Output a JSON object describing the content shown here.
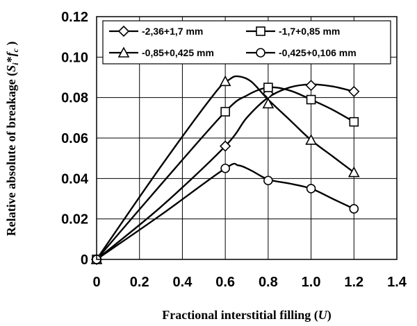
{
  "chart_data": {
    "type": "line",
    "title": "",
    "xlabel": "Fractional interstitial filling (U)",
    "xlabel_main": "Fractional interstitial filling (",
    "xlabel_var": "U",
    "xlabel_close": ")",
    "ylabel": "Relative absolute of breakage (Si*fc )",
    "ylabel_main": "Relative absolute of breakage (",
    "ylabel_s": "S",
    "ylabel_i": "i",
    "ylabel_star": "*",
    "ylabel_f": "f",
    "ylabel_c": "c",
    "ylabel_close": " )",
    "xlim": [
      0,
      1.4
    ],
    "ylim": [
      0,
      0.12
    ],
    "x_ticks": [
      "0",
      "0.2",
      "0.4",
      "0.6",
      "0.8",
      "1.0",
      "1.2",
      "1.4"
    ],
    "y_ticks": [
      "0",
      "0.02",
      "0.04",
      "0.06",
      "0.08",
      "0.10",
      "0.12"
    ],
    "grid": true,
    "legend_position": "top",
    "series": [
      {
        "name": "-2,36+1,7 mm",
        "marker": "diamond",
        "points": [
          [
            0,
            0
          ],
          [
            0.6,
            0.056
          ],
          [
            0.8,
            0.082
          ],
          [
            1.0,
            0.086
          ],
          [
            1.2,
            0.083
          ]
        ],
        "curve": [
          [
            0,
            0
          ],
          [
            0.3,
            0.026
          ],
          [
            0.6,
            0.056
          ],
          [
            0.7,
            0.07
          ],
          [
            0.8,
            0.08
          ],
          [
            0.9,
            0.085
          ],
          [
            1.0,
            0.0865
          ],
          [
            1.1,
            0.0855
          ],
          [
            1.2,
            0.083
          ]
        ]
      },
      {
        "name": "-1,7+0,85 mm",
        "marker": "square",
        "points": [
          [
            0,
            0
          ],
          [
            0.6,
            0.073
          ],
          [
            0.8,
            0.085
          ],
          [
            1.0,
            0.079
          ],
          [
            1.2,
            0.068
          ]
        ],
        "curve": [
          [
            0,
            0
          ],
          [
            0.3,
            0.037
          ],
          [
            0.6,
            0.073
          ],
          [
            0.7,
            0.081
          ],
          [
            0.8,
            0.085
          ],
          [
            0.9,
            0.0835
          ],
          [
            1.0,
            0.079
          ],
          [
            1.1,
            0.074
          ],
          [
            1.2,
            0.068
          ]
        ]
      },
      {
        "name": "-0,85+0,425 mm",
        "marker": "triangle",
        "points": [
          [
            0,
            0
          ],
          [
            0.6,
            0.088
          ],
          [
            0.8,
            0.077
          ],
          [
            1.0,
            0.059
          ],
          [
            1.2,
            0.043
          ]
        ],
        "curve": [
          [
            0,
            0
          ],
          [
            0.3,
            0.046
          ],
          [
            0.55,
            0.082
          ],
          [
            0.62,
            0.089
          ],
          [
            0.66,
            0.0905
          ],
          [
            0.72,
            0.088
          ],
          [
            0.8,
            0.079
          ],
          [
            0.9,
            0.069
          ],
          [
            1.0,
            0.059
          ],
          [
            1.1,
            0.051
          ],
          [
            1.2,
            0.043
          ]
        ]
      },
      {
        "name": "-0,425+0,106 mm",
        "marker": "circle",
        "points": [
          [
            0,
            0
          ],
          [
            0.6,
            0.045
          ],
          [
            0.8,
            0.039
          ],
          [
            1.0,
            0.035
          ],
          [
            1.2,
            0.025
          ]
        ],
        "curve": [
          [
            0,
            0
          ],
          [
            0.3,
            0.022
          ],
          [
            0.6,
            0.045
          ],
          [
            0.66,
            0.0465
          ],
          [
            0.72,
            0.044
          ],
          [
            0.8,
            0.0395
          ],
          [
            0.9,
            0.0375
          ],
          [
            1.0,
            0.035
          ],
          [
            1.1,
            0.03
          ],
          [
            1.2,
            0.025
          ]
        ]
      }
    ]
  }
}
